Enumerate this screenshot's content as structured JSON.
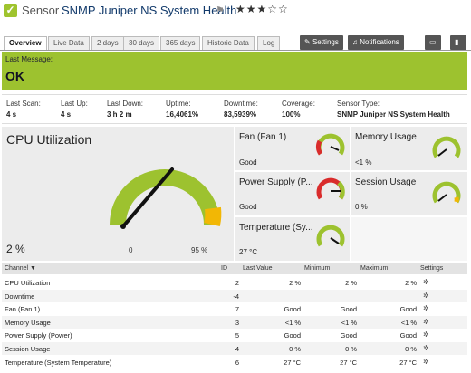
{
  "header": {
    "status_icon": "check-icon",
    "type_label": "Sensor",
    "sensor_name": "SNMP Juniper NS System Health",
    "flag_icon": "flag-icon",
    "stars": "★★★☆☆"
  },
  "tabs": [
    "Overview",
    "Live Data",
    "2 days",
    "30 days",
    "365 days",
    "Historic Data",
    "Log"
  ],
  "buttons": {
    "settings": "Settings",
    "notifications": "Notifications"
  },
  "banner": {
    "label": "Last Message:",
    "status": "OK",
    "color": "#9dc22f"
  },
  "stats": [
    {
      "label": "Last Scan:",
      "value": "4 s"
    },
    {
      "label": "Last Up:",
      "value": "4 s"
    },
    {
      "label": "Last Down:",
      "value": "3 h 2 m"
    },
    {
      "label": "Uptime:",
      "value": "16,4061%"
    },
    {
      "label": "Downtime:",
      "value": "83,5939%"
    },
    {
      "label": "Coverage:",
      "value": "100%"
    },
    {
      "label": "Sensor Type:",
      "value": "SNMP Juniper NS System Health"
    }
  ],
  "main_gauge": {
    "title": "CPU Utilization",
    "value_text": "2 %",
    "min_label": "0",
    "max_label": "95 %",
    "value": 2,
    "max": 95,
    "color": "#9dc22f",
    "warn_color": "#f2b705"
  },
  "small_gauges": [
    {
      "title": "Fan (Fan 1)",
      "value": "Good"
    },
    {
      "title": "Memory Usage",
      "value": "<1 %"
    },
    {
      "title": "Power Supply (P...",
      "value": "Good"
    },
    {
      "title": "Session Usage",
      "value": "0 %"
    },
    {
      "title": "Temperature (Sy...",
      "value": "27 °C"
    }
  ],
  "table": {
    "headers": [
      "Channel",
      "ID",
      "Last Value",
      "Minimum",
      "Maximum",
      "Settings"
    ],
    "rows": [
      [
        "CPU Utilization",
        "2",
        "2 %",
        "2 %",
        "2 %"
      ],
      [
        "Downtime",
        "-4",
        "",
        "",
        ""
      ],
      [
        "Fan (Fan 1)",
        "7",
        "Good",
        "Good",
        "Good"
      ],
      [
        "Memory Usage",
        "3",
        "<1 %",
        "<1 %",
        "<1 %"
      ],
      [
        "Power Supply (Power)",
        "5",
        "Good",
        "Good",
        "Good"
      ],
      [
        "Session Usage",
        "4",
        "0 %",
        "0 %",
        "0 %"
      ],
      [
        "Temperature (System Temperature)",
        "6",
        "27 °C",
        "27 °C",
        "27 °C"
      ]
    ]
  }
}
